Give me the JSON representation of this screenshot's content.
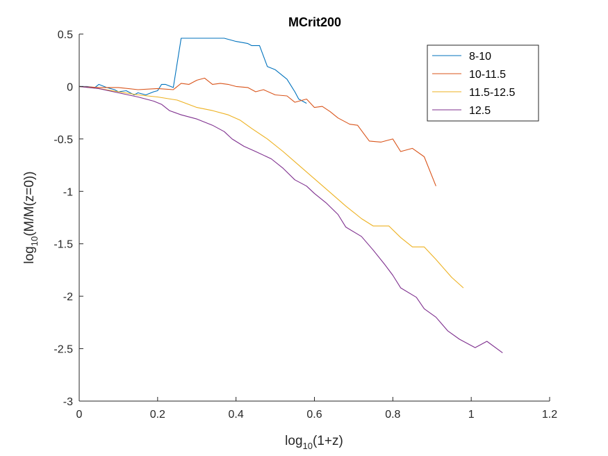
{
  "chart_data": {
    "type": "line",
    "title": "MCrit200",
    "xlabel": {
      "base": "log",
      "sub": "10",
      "rest": "(1+z)"
    },
    "ylabel": {
      "base": "log",
      "sub": "10",
      "rest": "(M/M(z=0))"
    },
    "xlim": [
      0,
      1.2
    ],
    "ylim": [
      -3,
      0.5
    ],
    "xticks": [
      0,
      0.2,
      0.4,
      0.6,
      0.8,
      1,
      1.2
    ],
    "xtick_labels": [
      "0",
      "0.2",
      "0.4",
      "0.6",
      "0.8",
      "1",
      "1.2"
    ],
    "yticks": [
      -3,
      -2.5,
      -2,
      -1.5,
      -1,
      -0.5,
      0,
      0.5
    ],
    "ytick_labels": [
      "-3",
      "-2.5",
      "-2",
      "-1.5",
      "-1",
      "-0.5",
      "0",
      "0.5"
    ],
    "grid": false,
    "legend_position": "top-right",
    "series": [
      {
        "name": "8-10",
        "color": "#0072BD",
        "points": [
          [
            0,
            0
          ],
          [
            0.02,
            0
          ],
          [
            0.04,
            -0.01
          ],
          [
            0.05,
            0.02
          ],
          [
            0.07,
            -0.01
          ],
          [
            0.09,
            -0.03
          ],
          [
            0.1,
            -0.05
          ],
          [
            0.12,
            -0.04
          ],
          [
            0.14,
            -0.08
          ],
          [
            0.15,
            -0.06
          ],
          [
            0.17,
            -0.08
          ],
          [
            0.19,
            -0.05
          ],
          [
            0.2,
            -0.04
          ],
          [
            0.21,
            0.02
          ],
          [
            0.22,
            0.02
          ],
          [
            0.24,
            -0.01
          ],
          [
            0.26,
            0.46
          ],
          [
            0.3,
            0.46
          ],
          [
            0.34,
            0.46
          ],
          [
            0.37,
            0.46
          ],
          [
            0.4,
            0.43
          ],
          [
            0.43,
            0.41
          ],
          [
            0.44,
            0.39
          ],
          [
            0.46,
            0.39
          ],
          [
            0.48,
            0.19
          ],
          [
            0.5,
            0.16
          ],
          [
            0.53,
            0.07
          ],
          [
            0.55,
            -0.05
          ],
          [
            0.56,
            -0.12
          ],
          [
            0.58,
            -0.16
          ]
        ]
      },
      {
        "name": "10-11.5",
        "color": "#D95319",
        "points": [
          [
            0,
            0
          ],
          [
            0.05,
            -0.01
          ],
          [
            0.1,
            -0.01
          ],
          [
            0.15,
            -0.03
          ],
          [
            0.2,
            -0.02
          ],
          [
            0.24,
            -0.03
          ],
          [
            0.26,
            0.03
          ],
          [
            0.28,
            0.02
          ],
          [
            0.3,
            0.06
          ],
          [
            0.32,
            0.08
          ],
          [
            0.34,
            0.02
          ],
          [
            0.36,
            0.03
          ],
          [
            0.38,
            0.02
          ],
          [
            0.4,
            0
          ],
          [
            0.43,
            -0.01
          ],
          [
            0.45,
            -0.05
          ],
          [
            0.47,
            -0.03
          ],
          [
            0.5,
            -0.08
          ],
          [
            0.53,
            -0.09
          ],
          [
            0.55,
            -0.15
          ],
          [
            0.58,
            -0.12
          ],
          [
            0.6,
            -0.2
          ],
          [
            0.62,
            -0.19
          ],
          [
            0.64,
            -0.24
          ],
          [
            0.66,
            -0.3
          ],
          [
            0.69,
            -0.36
          ],
          [
            0.71,
            -0.37
          ],
          [
            0.73,
            -0.47
          ],
          [
            0.74,
            -0.52
          ],
          [
            0.77,
            -0.53
          ],
          [
            0.8,
            -0.5
          ],
          [
            0.82,
            -0.62
          ],
          [
            0.85,
            -0.59
          ],
          [
            0.88,
            -0.67
          ],
          [
            0.91,
            -0.95
          ]
        ]
      },
      {
        "name": "11.5-12.5",
        "color": "#EDB120",
        "points": [
          [
            0,
            0
          ],
          [
            0.05,
            -0.02
          ],
          [
            0.1,
            -0.05
          ],
          [
            0.15,
            -0.08
          ],
          [
            0.2,
            -0.1
          ],
          [
            0.25,
            -0.13
          ],
          [
            0.3,
            -0.2
          ],
          [
            0.34,
            -0.23
          ],
          [
            0.38,
            -0.27
          ],
          [
            0.41,
            -0.32
          ],
          [
            0.44,
            -0.4
          ],
          [
            0.48,
            -0.5
          ],
          [
            0.52,
            -0.62
          ],
          [
            0.56,
            -0.75
          ],
          [
            0.6,
            -0.88
          ],
          [
            0.64,
            -1.01
          ],
          [
            0.68,
            -1.14
          ],
          [
            0.72,
            -1.26
          ],
          [
            0.75,
            -1.33
          ],
          [
            0.79,
            -1.33
          ],
          [
            0.82,
            -1.44
          ],
          [
            0.85,
            -1.53
          ],
          [
            0.88,
            -1.53
          ],
          [
            0.91,
            -1.65
          ],
          [
            0.95,
            -1.82
          ],
          [
            0.98,
            -1.92
          ]
        ]
      },
      {
        "name": "12.5",
        "color": "#7E2F8E",
        "points": [
          [
            0,
            0
          ],
          [
            0.05,
            -0.02
          ],
          [
            0.1,
            -0.06
          ],
          [
            0.15,
            -0.1
          ],
          [
            0.19,
            -0.14
          ],
          [
            0.21,
            -0.17
          ],
          [
            0.23,
            -0.23
          ],
          [
            0.26,
            -0.27
          ],
          [
            0.3,
            -0.31
          ],
          [
            0.34,
            -0.37
          ],
          [
            0.37,
            -0.43
          ],
          [
            0.39,
            -0.5
          ],
          [
            0.42,
            -0.57
          ],
          [
            0.45,
            -0.62
          ],
          [
            0.49,
            -0.69
          ],
          [
            0.52,
            -0.78
          ],
          [
            0.55,
            -0.89
          ],
          [
            0.58,
            -0.95
          ],
          [
            0.6,
            -1.02
          ],
          [
            0.63,
            -1.11
          ],
          [
            0.66,
            -1.22
          ],
          [
            0.68,
            -1.34
          ],
          [
            0.72,
            -1.43
          ],
          [
            0.75,
            -1.56
          ],
          [
            0.78,
            -1.7
          ],
          [
            0.8,
            -1.8
          ],
          [
            0.82,
            -1.92
          ],
          [
            0.86,
            -2.01
          ],
          [
            0.88,
            -2.12
          ],
          [
            0.91,
            -2.2
          ],
          [
            0.94,
            -2.33
          ],
          [
            0.97,
            -2.41
          ],
          [
            1.01,
            -2.49
          ],
          [
            1.04,
            -2.43
          ],
          [
            1.08,
            -2.54
          ]
        ]
      }
    ]
  }
}
